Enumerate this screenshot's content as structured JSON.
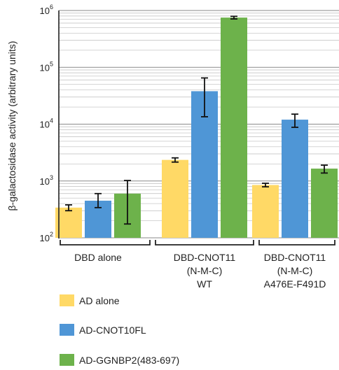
{
  "chart_data": {
    "type": "bar",
    "title": "",
    "ylabel": "β-galactosidase activity (arbitrary units)",
    "xlabel": "",
    "yscale": "log",
    "ylim": [
      100,
      1000000
    ],
    "y_ticks": [
      {
        "base": "10",
        "exp": "2",
        "value": 100
      },
      {
        "base": "10",
        "exp": "3",
        "value": 1000
      },
      {
        "base": "10",
        "exp": "4",
        "value": 10000
      },
      {
        "base": "10",
        "exp": "5",
        "value": 100000
      },
      {
        "base": "10",
        "exp": "6",
        "value": 1000000
      }
    ],
    "grid": "horizontal-major-and-minor",
    "legend_position": "bottom-left",
    "categories": [
      {
        "lines": [
          "DBD alone"
        ]
      },
      {
        "lines": [
          "DBD-CNOT11",
          "(N-M-C)",
          "WT"
        ]
      },
      {
        "lines": [
          "DBD-CNOT11",
          "(N-M-C)",
          "A476E-F491D"
        ]
      }
    ],
    "series": [
      {
        "name": "AD alone",
        "color": "#FFD966",
        "values": [
          340,
          2350,
          850
        ],
        "err_low": [
          300,
          2150,
          790
        ],
        "err_high": [
          380,
          2550,
          910
        ]
      },
      {
        "name": "AD-CNOT10FL",
        "color": "#4F96D6",
        "values": [
          450,
          38000,
          12000
        ],
        "err_low": [
          340,
          13500,
          8800
        ],
        "err_high": [
          600,
          65000,
          15000
        ]
      },
      {
        "name": "AD-GGNBP2(483-697)",
        "color": "#6DB24B",
        "values": [
          600,
          750000,
          1650
        ],
        "err_low": [
          175,
          710000,
          1380
        ],
        "err_high": [
          1020,
          790000,
          1900
        ]
      }
    ]
  }
}
